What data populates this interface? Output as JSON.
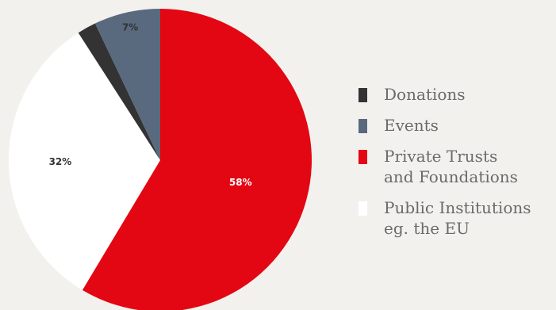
{
  "colors": {
    "background": "#f3f1ee",
    "Donations": "#333333",
    "Events": "#5a6a7e",
    "Private Trusts and Foundations": "#e30613",
    "Public Institutions eg. the EU": "#ffffff"
  },
  "chart_data": {
    "type": "pie",
    "title": "",
    "start_angle_deg": 0,
    "direction": "clockwise",
    "slices": [
      {
        "name": "Private Trusts and Foundations",
        "value": 58,
        "label": "58%",
        "label_color": "#ffffff"
      },
      {
        "name": "Public Institutions eg. the EU",
        "value": 32,
        "label": "32%",
        "label_color": "#333333"
      },
      {
        "name": "Donations",
        "value": 2,
        "label": "2%",
        "label_color": "#333333"
      },
      {
        "name": "Events",
        "value": 7,
        "label": "7%",
        "label_color": "#333333"
      }
    ],
    "legend": {
      "placement": "right",
      "items": [
        {
          "label": "Donations",
          "color": "#333333"
        },
        {
          "label": "Events",
          "color": "#5a6a7e"
        },
        {
          "label": "Private Trusts\nand Foundations",
          "color": "#e30613"
        },
        {
          "label": "Public Institutions\neg. the EU",
          "color": "#ffffff"
        }
      ]
    }
  }
}
